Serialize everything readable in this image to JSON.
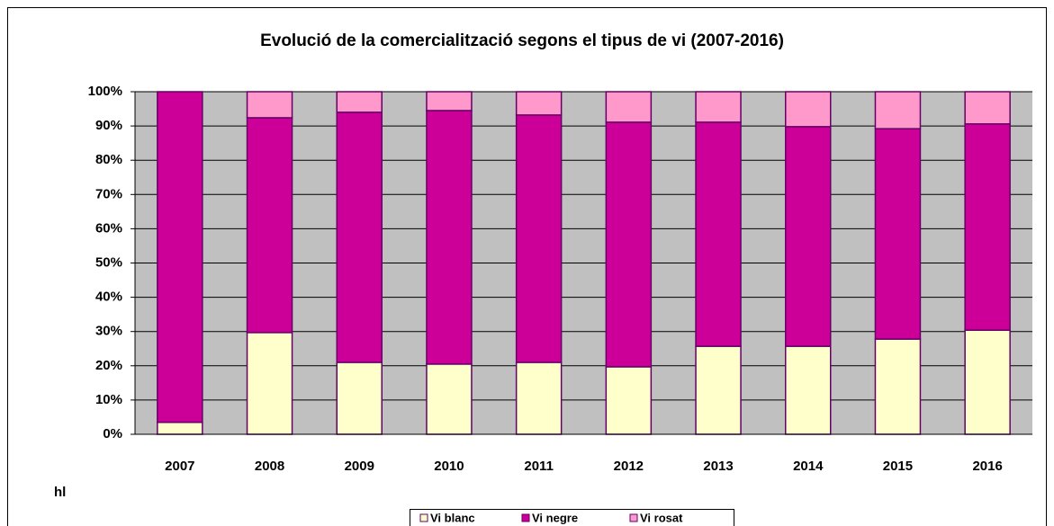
{
  "chart_data": {
    "type": "stacked_bar",
    "title": "Evolució de la comercialització segons el tipus de vi (2007-2016)",
    "y_label": "hl",
    "categories": [
      "2007",
      "2008",
      "2009",
      "2010",
      "2011",
      "2012",
      "2013",
      "2014",
      "2015",
      "2016"
    ],
    "series": [
      {
        "name": "Vi blanc",
        "color": "#ffffcc",
        "values": [
          3.5,
          29.7,
          21,
          20.5,
          21,
          19.7,
          25.7,
          25.7,
          27.8,
          30.4
        ]
      },
      {
        "name": "Vi negre",
        "color": "#cc0099",
        "values": [
          96.5,
          62.7,
          73,
          74,
          72.2,
          71.4,
          65.4,
          64.1,
          61.4,
          60.2
        ]
      },
      {
        "name": "Vi rosat",
        "color": "#ff99cc",
        "values": [
          0,
          7.6,
          6,
          5.5,
          6.8,
          8.9,
          8.9,
          10.2,
          10.8,
          9.4
        ]
      }
    ],
    "ylim": [
      0,
      100
    ],
    "yticks": [
      {
        "value": 0,
        "label": "0%"
      },
      {
        "value": 10,
        "label": "10%"
      },
      {
        "value": 20,
        "label": "20%"
      },
      {
        "value": 30,
        "label": "30%"
      },
      {
        "value": 40,
        "label": "40%"
      },
      {
        "value": 50,
        "label": "50%"
      },
      {
        "value": 60,
        "label": "60%"
      },
      {
        "value": 70,
        "label": "70%"
      },
      {
        "value": 80,
        "label": "80%"
      },
      {
        "value": 90,
        "label": "90%"
      },
      {
        "value": 100,
        "label": "100%"
      }
    ],
    "grid": true,
    "legend": "bottom"
  }
}
